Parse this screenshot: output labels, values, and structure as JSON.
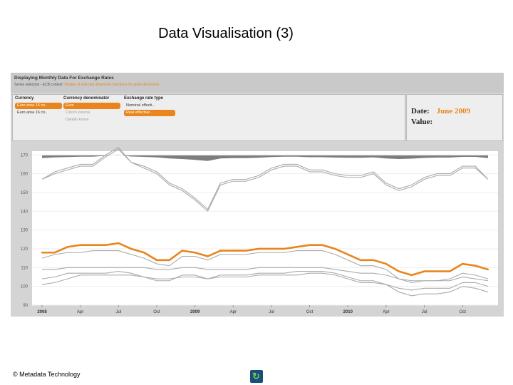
{
  "slide": {
    "title": "Data Visualisation (3)",
    "footer": "© Metadata Technology"
  },
  "app": {
    "title": "Displaying Monthly Data For Exchange Rates",
    "subtitle_prefix": "Series selection - ECB context:",
    "subtitle_link": "Display of selected dimension members for given dimension",
    "columns": {
      "currency": {
        "label": "Currency",
        "options": [
          {
            "label": "Euro area 16 co..",
            "selected": true
          },
          {
            "label": "Euro area 16 co..",
            "selected": false
          }
        ]
      },
      "denominator": {
        "label": "Currency denominator",
        "options": [
          {
            "label": "Euro",
            "selected": true
          },
          {
            "label": "Czech koruna",
            "selected": false
          },
          {
            "label": "Danish krone",
            "selected": false
          }
        ]
      },
      "rate_type": {
        "label": "Exchange rate type",
        "options": [
          {
            "label": "Nominal effecti..",
            "selected": false
          },
          {
            "label": "Real effective ..",
            "selected": true
          }
        ]
      }
    },
    "info": {
      "date_label": "Date:",
      "date_value": "June 2009",
      "value_label": "Value:",
      "value_value": ""
    }
  },
  "chart_data": {
    "type": "line",
    "x": [
      "2008-01",
      "2008-02",
      "2008-03",
      "2008-04",
      "2008-05",
      "2008-06",
      "2008-07",
      "2008-08",
      "2008-09",
      "2008-10",
      "2008-11",
      "2008-12",
      "2009-01",
      "2009-02",
      "2009-03",
      "2009-04",
      "2009-05",
      "2009-06",
      "2009-07",
      "2009-08",
      "2009-09",
      "2009-10",
      "2009-11",
      "2009-12",
      "2010-01",
      "2010-02",
      "2010-03",
      "2010-04",
      "2010-05",
      "2010-06",
      "2010-07",
      "2010-08",
      "2010-09",
      "2010-10",
      "2010-11",
      "2010-12"
    ],
    "x_tick_labels": [
      "2008",
      "Apr",
      "Jul",
      "Oct",
      "2009",
      "Apr",
      "Jul",
      "Oct",
      "2010",
      "Apr",
      "Jul",
      "Oct"
    ],
    "y_tick_labels": [
      "90",
      "100",
      "110",
      "120",
      "130",
      "140",
      "150",
      "160",
      "170"
    ],
    "ylim": [
      90,
      172
    ],
    "grid": true,
    "highlight_color": "#e8851c",
    "series_color": "#aaaaaa",
    "series": [
      {
        "highlight": true,
        "values": [
          118,
          118,
          121,
          122,
          122,
          122,
          123,
          120,
          118,
          114,
          114,
          119,
          118,
          116,
          119,
          119,
          119,
          120,
          120,
          120,
          121,
          122,
          122,
          120,
          117,
          114,
          114,
          112,
          108,
          106,
          108,
          108,
          108,
          112,
          111,
          109
        ]
      },
      {
        "highlight": false,
        "values": [
          115,
          117,
          118,
          118,
          119,
          119,
          119,
          117,
          115,
          112,
          111,
          116,
          116,
          114,
          117,
          117,
          117,
          118,
          118,
          118,
          119,
          119,
          119,
          117,
          114,
          111,
          111,
          109,
          104,
          102,
          103,
          103,
          104,
          107,
          106,
          104
        ]
      },
      {
        "highlight": false,
        "values": [
          157,
          161,
          163,
          165,
          165,
          170,
          174,
          166,
          164,
          161,
          155,
          152,
          147,
          141,
          155,
          157,
          157,
          159,
          163,
          165,
          165,
          162,
          162,
          160,
          159,
          159,
          161,
          155,
          152,
          154,
          158,
          160,
          160,
          164,
          164,
          157
        ]
      },
      {
        "highlight": false,
        "values": [
          157,
          160,
          162,
          164,
          164,
          169,
          173,
          166,
          163,
          160,
          154,
          151,
          146,
          140,
          154,
          156,
          156,
          158,
          162,
          164,
          164,
          161,
          161,
          159,
          158,
          158,
          160,
          154,
          151,
          153,
          157,
          159,
          159,
          163,
          163,
          157
        ]
      },
      {
        "highlight": false,
        "values": [
          109,
          109,
          110,
          110,
          110,
          110,
          110,
          110,
          110,
          109,
          109,
          110,
          110,
          109,
          109,
          109,
          109,
          110,
          110,
          110,
          110,
          110,
          110,
          109,
          108,
          107,
          107,
          106,
          104,
          103,
          103,
          103,
          103,
          105,
          104,
          103
        ]
      },
      {
        "highlight": false,
        "values": [
          101,
          102,
          104,
          106,
          106,
          106,
          106,
          106,
          105,
          104,
          104,
          105,
          105,
          104,
          105,
          105,
          105,
          106,
          106,
          106,
          106,
          107,
          107,
          106,
          104,
          102,
          102,
          101,
          99,
          98,
          99,
          99,
          99,
          102,
          102,
          100
        ]
      },
      {
        "highlight": false,
        "values": [
          104,
          105,
          107,
          107,
          107,
          107,
          108,
          107,
          105,
          103,
          103,
          106,
          106,
          104,
          106,
          106,
          106,
          107,
          107,
          107,
          108,
          108,
          108,
          107,
          105,
          103,
          103,
          101,
          97,
          95,
          96,
          96,
          97,
          100,
          99,
          97
        ]
      }
    ]
  }
}
